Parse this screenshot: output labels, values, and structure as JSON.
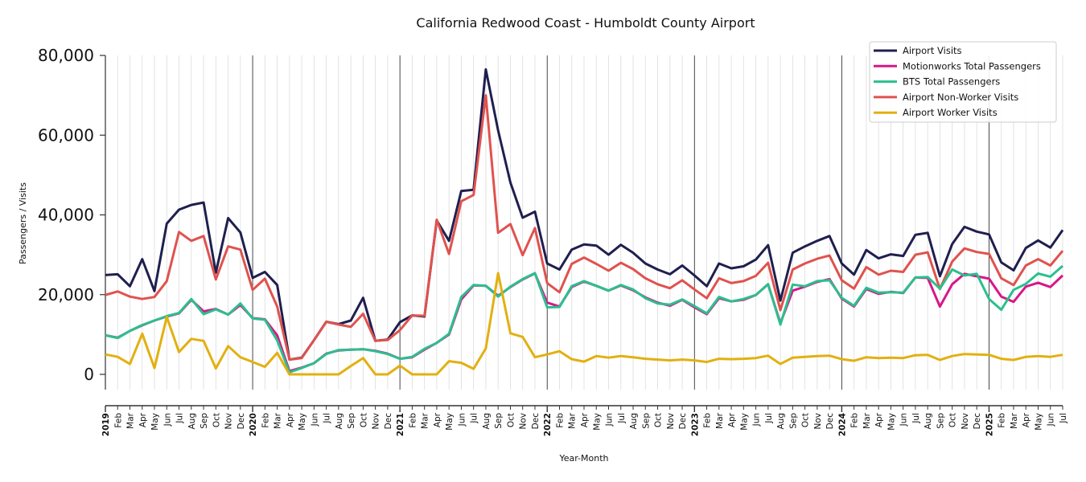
{
  "chart_data": {
    "type": "line",
    "title": "California Redwood Coast - Humboldt County Airport",
    "xlabel": "Year-Month",
    "ylabel": "Passengers / Visits",
    "ylim": [
      -4000,
      80000
    ],
    "yticks": [
      0,
      20000,
      40000,
      60000,
      80000
    ],
    "ytick_labels": [
      "0",
      "20,000",
      "40,000",
      "60,000",
      "80,000"
    ],
    "grid": "vertical monthly gridlines, darker lines at each January",
    "legend_position": "top-right",
    "start": "2019-01",
    "x_tick_labels": [
      "2019",
      "Feb",
      "Mar",
      "Apr",
      "May",
      "Jun",
      "Jul",
      "Aug",
      "Sep",
      "Oct",
      "Nov",
      "Dec",
      "2020",
      "Feb",
      "Mar",
      "Apr",
      "May",
      "Jun",
      "Jul",
      "Aug",
      "Sep",
      "Oct",
      "Nov",
      "Dec",
      "2021",
      "Feb",
      "Mar",
      "Apr",
      "May",
      "Jun",
      "Jul",
      "Aug",
      "Sep",
      "Oct",
      "Nov",
      "Dec",
      "2022",
      "Feb",
      "Mar",
      "Apr",
      "May",
      "Jun",
      "Jul",
      "Aug",
      "Sep",
      "Oct",
      "Nov",
      "Dec",
      "2023",
      "Feb",
      "Mar",
      "Apr",
      "May",
      "Jun",
      "Jul",
      "Aug",
      "Sep",
      "Oct",
      "Nov",
      "Dec",
      "2024",
      "Feb",
      "Mar",
      "Apr",
      "May",
      "Jun",
      "Jul",
      "Aug",
      "Sep",
      "Oct",
      "Nov",
      "Dec",
      "2025",
      "Feb",
      "Mar",
      "Apr",
      "May",
      "Jun",
      "Jul"
    ],
    "series": [
      {
        "name": "Airport Visits",
        "color": "#1f1f4f",
        "values": [
          24900,
          25100,
          22100,
          28900,
          20900,
          37800,
          41300,
          42500,
          43100,
          25500,
          39200,
          35600,
          24200,
          25700,
          22400,
          3700,
          4200,
          8600,
          13200,
          12600,
          13500,
          19200,
          8400,
          8700,
          13100,
          14800,
          14500,
          38600,
          33500,
          46000,
          46300,
          76500,
          61200,
          48100,
          39300,
          40800,
          27800,
          26300,
          31300,
          32600,
          32300,
          30000,
          32500,
          30500,
          27800,
          26300,
          25100,
          27300,
          24800,
          22100,
          27800,
          26600,
          27100,
          28800,
          32400,
          18500,
          30500,
          32100,
          33500,
          34700,
          27800,
          25000,
          31200,
          29100,
          30100,
          29700,
          35000,
          35500,
          24600,
          32700,
          37000,
          35800,
          35100,
          28100,
          26100,
          31700,
          33600,
          31800,
          36200
        ]
      },
      {
        "name": "Motionworks Total Passengers",
        "color": "#d6188a",
        "values": [
          9800,
          9200,
          10900,
          12300,
          13500,
          14500,
          15300,
          18700,
          15800,
          16400,
          15000,
          17400,
          14100,
          13800,
          9800,
          800,
          1700,
          2800,
          5200,
          6000,
          6200,
          6300,
          5900,
          5200,
          3900,
          4300,
          6200,
          7900,
          10000,
          18800,
          22300,
          22200,
          19700,
          21900,
          23800,
          25300,
          18000,
          17000,
          21900,
          23300,
          22200,
          21000,
          22300,
          21100,
          19300,
          18000,
          17200,
          18700,
          16800,
          15100,
          19100,
          18300,
          18700,
          19900,
          22600,
          12800,
          21000,
          22000,
          23200,
          23900,
          19000,
          17000,
          21400,
          20200,
          20700,
          20400,
          24300,
          24200,
          17000,
          22600,
          25200,
          24600,
          24000,
          19500,
          18200,
          22000,
          23000,
          21900,
          24800
        ]
      },
      {
        "name": "BTS Total Passengers",
        "color": "#2bbf8e",
        "values": [
          9800,
          9100,
          10900,
          12400,
          13500,
          14600,
          15400,
          18900,
          15100,
          16300,
          15000,
          17800,
          14000,
          13700,
          8500,
          500,
          1600,
          2800,
          5100,
          6100,
          6200,
          6300,
          5800,
          5100,
          3900,
          4400,
          6400,
          7900,
          10200,
          19400,
          22400,
          22200,
          19500,
          22000,
          23900,
          25400,
          16800,
          16900,
          22100,
          23400,
          22200,
          21000,
          22400,
          21300,
          19100,
          17800,
          17500,
          18800,
          17100,
          15300,
          19400,
          18300,
          18900,
          19900,
          22600,
          12500,
          22500,
          22100,
          23400,
          23600,
          19200,
          17200,
          21700,
          20500,
          20600,
          20500,
          24300,
          24400,
          21500,
          26300,
          24800,
          25200,
          18900,
          16200,
          21200,
          22700,
          25300,
          24500,
          27200
        ]
      },
      {
        "name": "Airport Non-Worker Visits",
        "color": "#e0524e",
        "values": [
          19900,
          20800,
          19500,
          18900,
          19400,
          23400,
          35700,
          33500,
          34700,
          23800,
          32100,
          31300,
          21200,
          24000,
          17000,
          3700,
          4100,
          8600,
          13200,
          12500,
          11900,
          15200,
          8400,
          8600,
          11100,
          14800,
          14700,
          38800,
          30200,
          43400,
          45000,
          70000,
          35500,
          37700,
          29900,
          36700,
          22900,
          20600,
          27700,
          29300,
          27700,
          26000,
          28000,
          26400,
          24100,
          22600,
          21600,
          23600,
          21300,
          19100,
          24100,
          22900,
          23400,
          24700,
          28000,
          16100,
          26300,
          27800,
          29000,
          29800,
          23600,
          21500,
          26900,
          25000,
          26000,
          25700,
          30000,
          30600,
          21400,
          28300,
          31600,
          30700,
          30200,
          24100,
          22400,
          27300,
          28900,
          27300,
          31000
        ]
      },
      {
        "name": "Airport Worker Visits",
        "color": "#e2b010",
        "values": [
          5000,
          4400,
          2600,
          10200,
          1600,
          14400,
          5600,
          8900,
          8400,
          1500,
          7100,
          4300,
          3100,
          1900,
          5400,
          0,
          0,
          0,
          0,
          0,
          2100,
          4100,
          0,
          0,
          2200,
          0,
          0,
          0,
          3300,
          2900,
          1400,
          6500,
          25400,
          10300,
          9400,
          4300,
          5000,
          5800,
          3800,
          3200,
          4600,
          4200,
          4600,
          4300,
          3900,
          3700,
          3500,
          3700,
          3500,
          3100,
          3900,
          3800,
          3900,
          4100,
          4700,
          2600,
          4200,
          4400,
          4600,
          4700,
          3800,
          3400,
          4300,
          4100,
          4200,
          4100,
          4800,
          4900,
          3600,
          4600,
          5100,
          5000,
          4900,
          3900,
          3600,
          4400,
          4600,
          4400,
          4900
        ]
      }
    ]
  }
}
